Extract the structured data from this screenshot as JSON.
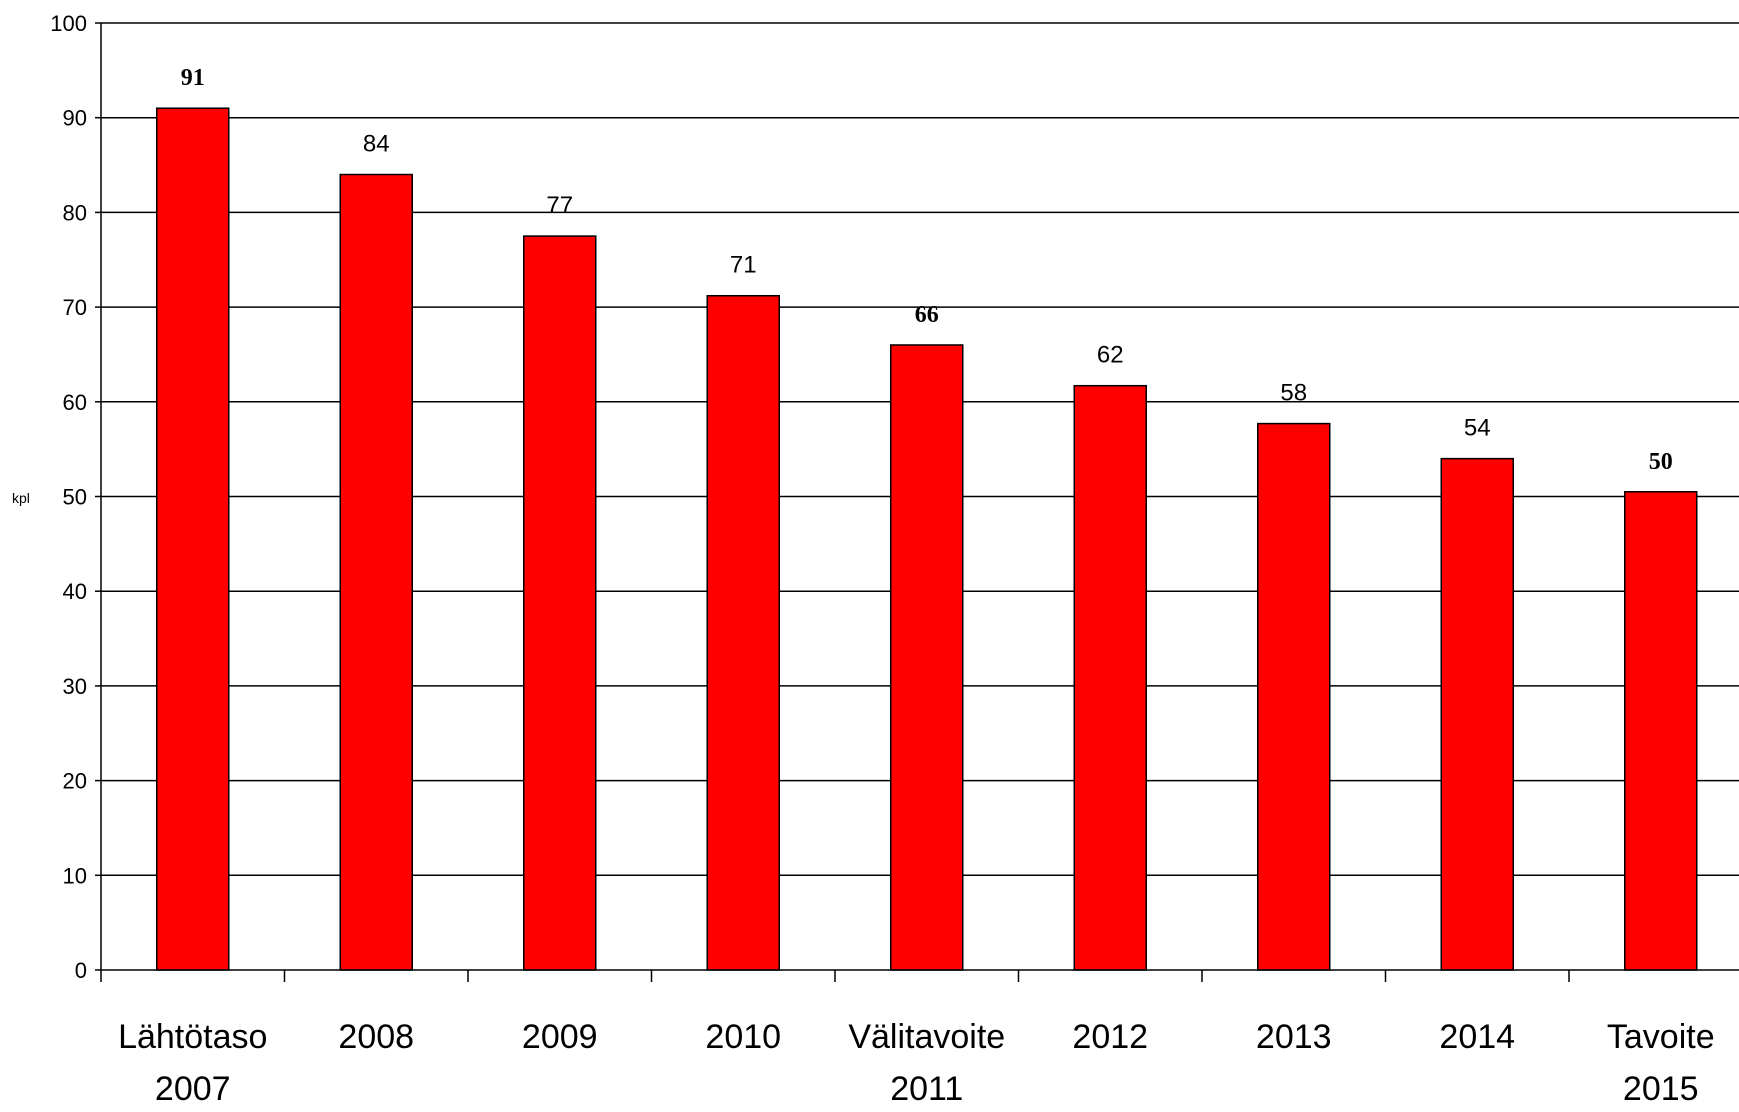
{
  "chart_data": {
    "type": "bar",
    "ylabel": "kpl",
    "ylim": [
      0,
      100
    ],
    "yticks": [
      0,
      10,
      20,
      30,
      40,
      50,
      60,
      70,
      80,
      90,
      100
    ],
    "grid": true,
    "bar_color": "#ff0000",
    "categories": [
      [
        "Lähtötaso",
        "2007"
      ],
      [
        "2008"
      ],
      [
        "2009"
      ],
      [
        "2010"
      ],
      [
        "Välitavoite",
        "2011"
      ],
      [
        "2012"
      ],
      [
        "2013"
      ],
      [
        "2014"
      ],
      [
        "Tavoite",
        "2015"
      ]
    ],
    "values": [
      91,
      84,
      77.5,
      71.2,
      66,
      61.7,
      57.7,
      54,
      50.5
    ],
    "data_labels": [
      "91",
      "84",
      "77",
      "71",
      "66",
      "62",
      "58",
      "54",
      "50"
    ],
    "bold_labels": [
      true,
      false,
      false,
      false,
      true,
      false,
      false,
      false,
      true
    ]
  }
}
